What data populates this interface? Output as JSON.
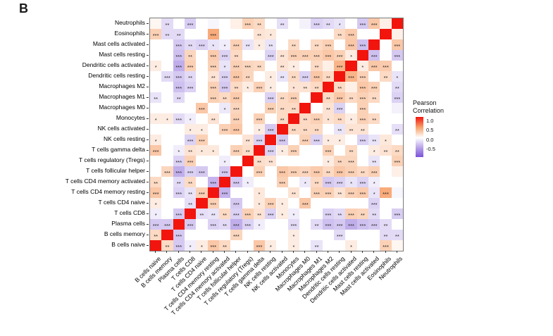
{
  "panel_label": "B",
  "legend": {
    "title_line1": "Pearson",
    "title_line2": "Correlation",
    "ticks": [
      "1.0",
      "0.5",
      "0.0",
      "-0.5"
    ]
  },
  "colors": {
    "positive_max": "#f2150d",
    "positive_mid": "#f7a26c",
    "negative_mid": "#b9a5e8",
    "negative_max": "#7b52d8",
    "background": "#ffffff"
  },
  "chart_data": {
    "type": "heatmap",
    "subtype": "correlation-matrix",
    "colorbar_range": [
      -1,
      1
    ],
    "diagonal_value": 1.0,
    "labels_x_left_to_right": [
      "B cells naive",
      "B cells memory",
      "Plasma cells",
      "T cells CD8",
      "T cells CD4 naive",
      "T cells CD4 memory resting",
      "T cells CD4 memory activated",
      "T cells follicular helper",
      "T cells regulatory (Tregs)",
      "T cells gamma delta",
      "NK cells resting",
      "NK cells activated",
      "Monocytes",
      "Macrophages M0",
      "Macrophages M1",
      "Macrophages M2",
      "Dendritic cells resting",
      "Dendritic cells activated",
      "Mast cells resting",
      "Mast cells activated",
      "Eosinophils",
      "Neutrophils"
    ],
    "labels_y_top_to_bottom": [
      "Neutrophils",
      "Eosinophils",
      "Mast cells activated",
      "Mast cells resting",
      "Dendritic cells activated",
      "Dendritic cells resting",
      "Macrophages M2",
      "Macrophages M1",
      "Macrophages M0",
      "Monocytes",
      "NK cells activated",
      "NK cells resting",
      "T cells gamma delta",
      "T cells regulatory (Tregs)",
      "T cells follicular helper",
      "T cells CD4 memory activated",
      "T cells CD4 memory resting",
      "T cells CD4 naive",
      "T cells CD8",
      "Plasma cells",
      "B cells memory",
      "B cells naive"
    ],
    "pairs_note": "symmetric correlation pairs [i, j, r, significance]; indices refer to labels_x_left_to_right; unlisted off-diagonal pairs ~0 (white)",
    "pairs": [
      [
        0,
        1,
        0.2,
        "**"
      ],
      [
        0,
        2,
        -0.3,
        "***"
      ],
      [
        0,
        3,
        -0.1,
        "*"
      ],
      [
        0,
        4,
        0.1,
        "*"
      ],
      [
        0,
        5,
        0.3,
        "***"
      ],
      [
        0,
        6,
        0.2,
        "**"
      ],
      [
        0,
        9,
        0.3,
        "***"
      ],
      [
        0,
        10,
        0.1,
        "*"
      ],
      [
        0,
        12,
        0.1,
        "*"
      ],
      [
        0,
        14,
        -0.15,
        "**"
      ],
      [
        0,
        17,
        0.1,
        "*"
      ],
      [
        0,
        20,
        0.25,
        "***"
      ],
      [
        0,
        21,
        0.05,
        ""
      ],
      [
        1,
        2,
        -0.3,
        "***"
      ],
      [
        1,
        7,
        0.22,
        "***"
      ],
      [
        1,
        12,
        0.1,
        "*"
      ],
      [
        1,
        16,
        -0.2,
        "***"
      ],
      [
        1,
        20,
        -0.2,
        "**"
      ],
      [
        1,
        21,
        -0.2,
        "**"
      ],
      [
        2,
        3,
        -0.3,
        "***"
      ],
      [
        2,
        5,
        -0.25,
        "***"
      ],
      [
        2,
        6,
        -0.2,
        "**"
      ],
      [
        2,
        7,
        -0.45,
        "***"
      ],
      [
        2,
        8,
        -0.25,
        "***"
      ],
      [
        2,
        9,
        -0.1,
        "*"
      ],
      [
        2,
        12,
        -0.2,
        "***"
      ],
      [
        2,
        14,
        -0.2,
        "**"
      ],
      [
        2,
        15,
        -0.35,
        "***"
      ],
      [
        2,
        16,
        -0.3,
        "***"
      ],
      [
        2,
        17,
        -0.45,
        "***"
      ],
      [
        2,
        18,
        -0.35,
        "***"
      ],
      [
        2,
        19,
        -0.3,
        "***"
      ],
      [
        2,
        20,
        -0.2,
        "**"
      ],
      [
        3,
        4,
        -0.18,
        "**"
      ],
      [
        3,
        5,
        -0.15,
        "**"
      ],
      [
        3,
        6,
        0.2,
        "**"
      ],
      [
        3,
        7,
        -0.25,
        "***"
      ],
      [
        3,
        8,
        0.25,
        "***"
      ],
      [
        3,
        9,
        0.15,
        "**"
      ],
      [
        3,
        10,
        -0.25,
        "***"
      ],
      [
        3,
        11,
        0.1,
        "*"
      ],
      [
        3,
        12,
        -0.1,
        "*"
      ],
      [
        3,
        15,
        -0.25,
        "***"
      ],
      [
        3,
        16,
        -0.2,
        "**"
      ],
      [
        3,
        17,
        0.25,
        "***"
      ],
      [
        3,
        18,
        0.22,
        "**"
      ],
      [
        3,
        19,
        -0.2,
        "**"
      ],
      [
        3,
        21,
        -0.28,
        "***"
      ],
      [
        4,
        5,
        0.25,
        "***"
      ],
      [
        4,
        7,
        -0.3,
        "***"
      ],
      [
        4,
        9,
        0.12,
        "*"
      ],
      [
        4,
        10,
        0.25,
        "***"
      ],
      [
        4,
        11,
        0.1,
        "*"
      ],
      [
        4,
        13,
        0.3,
        "***"
      ],
      [
        4,
        19,
        -0.25,
        "***"
      ],
      [
        5,
        6,
        -0.42,
        "***"
      ],
      [
        5,
        9,
        0.12,
        "*"
      ],
      [
        5,
        12,
        0.15,
        "**"
      ],
      [
        5,
        14,
        0.25,
        "***"
      ],
      [
        5,
        15,
        0.25,
        "***"
      ],
      [
        5,
        16,
        0.15,
        "**"
      ],
      [
        5,
        17,
        0.25,
        "***"
      ],
      [
        5,
        18,
        0.28,
        "***"
      ],
      [
        5,
        19,
        -0.15,
        "*"
      ],
      [
        5,
        20,
        0.45,
        "***"
      ],
      [
        5,
        21,
        -0.05,
        ""
      ],
      [
        6,
        7,
        -0.3,
        "***"
      ],
      [
        6,
        8,
        -0.1,
        "*"
      ],
      [
        6,
        11,
        0.25,
        "***"
      ],
      [
        6,
        13,
        -0.12,
        "*"
      ],
      [
        6,
        14,
        0.2,
        "**"
      ],
      [
        6,
        15,
        -0.3,
        "***"
      ],
      [
        6,
        16,
        -0.25,
        "***"
      ],
      [
        6,
        17,
        -0.15,
        "*"
      ],
      [
        6,
        18,
        -0.25,
        "***"
      ],
      [
        6,
        19,
        -0.1,
        "*"
      ],
      [
        7,
        9,
        0.25,
        "***"
      ],
      [
        7,
        11,
        0.3,
        "***"
      ],
      [
        7,
        12,
        0.25,
        "***"
      ],
      [
        7,
        13,
        0.22,
        "***"
      ],
      [
        7,
        14,
        0.28,
        "***"
      ],
      [
        7,
        15,
        0.2,
        "**"
      ],
      [
        7,
        16,
        0.3,
        "***"
      ],
      [
        7,
        17,
        0.25,
        "***"
      ],
      [
        7,
        18,
        0.2,
        "**"
      ],
      [
        7,
        19,
        0.25,
        "***"
      ],
      [
        7,
        21,
        0.08,
        ""
      ],
      [
        8,
        9,
        0.18,
        "**"
      ],
      [
        8,
        10,
        0.15,
        "**"
      ],
      [
        8,
        15,
        0.1,
        "*"
      ],
      [
        8,
        16,
        0.22,
        "**"
      ],
      [
        8,
        17,
        0.22,
        "***"
      ],
      [
        8,
        19,
        -0.15,
        "**"
      ],
      [
        8,
        21,
        0.25,
        "***"
      ],
      [
        9,
        10,
        -0.25,
        "***"
      ],
      [
        9,
        11,
        0.1,
        "*"
      ],
      [
        9,
        12,
        0.25,
        "***"
      ],
      [
        9,
        15,
        0.25,
        "***"
      ],
      [
        9,
        17,
        0.2,
        "**"
      ],
      [
        9,
        19,
        0.1,
        "*"
      ],
      [
        9,
        20,
        0.15,
        "**"
      ],
      [
        9,
        21,
        0.2,
        "**"
      ],
      [
        10,
        11,
        -0.3,
        "***"
      ],
      [
        10,
        13,
        0.25,
        "***"
      ],
      [
        10,
        14,
        -0.25,
        "***"
      ],
      [
        10,
        15,
        0.1,
        "*"
      ],
      [
        10,
        16,
        0.1,
        "*"
      ],
      [
        10,
        18,
        -0.25,
        "***"
      ],
      [
        10,
        19,
        -0.15,
        "**"
      ],
      [
        10,
        20,
        0.12,
        "*"
      ],
      [
        11,
        12,
        0.2,
        "**"
      ],
      [
        11,
        13,
        0.2,
        "**"
      ],
      [
        11,
        14,
        0.2,
        "**"
      ],
      [
        11,
        16,
        -0.15,
        "**"
      ],
      [
        11,
        17,
        0.15,
        "**"
      ],
      [
        11,
        18,
        0.15,
        "**"
      ],
      [
        11,
        21,
        -0.18,
        "**"
      ],
      [
        12,
        13,
        0.2,
        "**"
      ],
      [
        12,
        14,
        0.25,
        "***"
      ],
      [
        12,
        15,
        0.15,
        "*"
      ],
      [
        12,
        16,
        0.2,
        "**"
      ],
      [
        12,
        17,
        0.1,
        "*"
      ],
      [
        12,
        18,
        0.25,
        "***"
      ],
      [
        12,
        19,
        0.2,
        "**"
      ],
      [
        13,
        15,
        0.15,
        "**"
      ],
      [
        13,
        16,
        -0.25,
        "***"
      ],
      [
        13,
        18,
        0.25,
        "***"
      ],
      [
        13,
        21,
        -0.08,
        ""
      ],
      [
        14,
        15,
        0.2,
        "**"
      ],
      [
        14,
        16,
        0.3,
        "***"
      ],
      [
        14,
        17,
        0.2,
        "**"
      ],
      [
        14,
        18,
        0.25,
        "***"
      ],
      [
        14,
        19,
        0.2,
        "**"
      ],
      [
        14,
        21,
        -0.25,
        "***"
      ],
      [
        15,
        16,
        0.2,
        "**"
      ],
      [
        15,
        17,
        0.08,
        ""
      ],
      [
        15,
        18,
        0.3,
        "***"
      ],
      [
        15,
        19,
        0.25,
        "***"
      ],
      [
        15,
        21,
        -0.2,
        "**"
      ],
      [
        16,
        17,
        0.4,
        "***"
      ],
      [
        16,
        18,
        0.25,
        "***"
      ],
      [
        16,
        20,
        0.2,
        "**"
      ],
      [
        16,
        21,
        -0.15,
        "*"
      ],
      [
        17,
        18,
        0.1,
        "*"
      ],
      [
        17,
        19,
        0.3,
        "***"
      ],
      [
        17,
        20,
        0.28,
        "***"
      ],
      [
        18,
        19,
        -0.35,
        "***"
      ],
      [
        18,
        21,
        -0.3,
        "***"
      ],
      [
        19,
        21,
        0.3,
        "***"
      ],
      [
        20,
        21,
        0.08,
        ""
      ]
    ]
  }
}
